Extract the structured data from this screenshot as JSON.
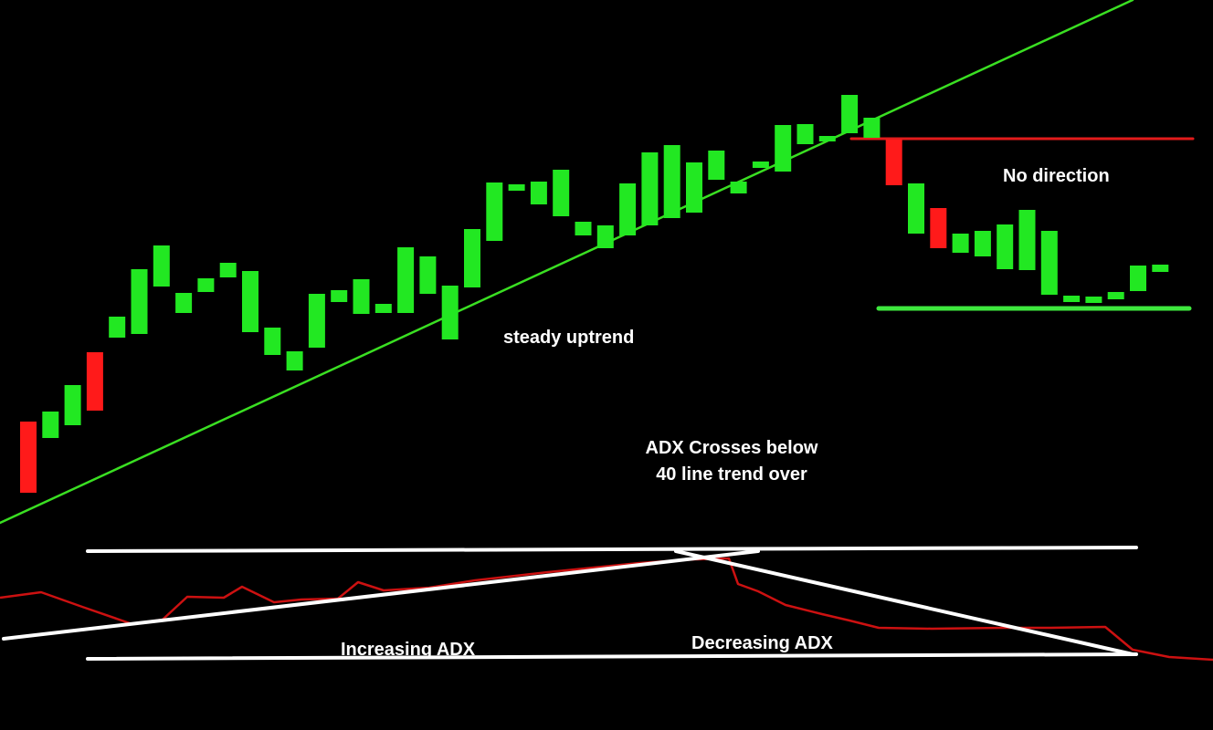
{
  "colors": {
    "background": "#000000",
    "bull_candle": "#22e822",
    "bear_candle": "#ff1a1a",
    "trendline": "#3adf22",
    "resistance_line": "#e21b1b",
    "support_line": "#3ee83e",
    "adx_line": "#cc1111",
    "annotation_lines": "#ffffff",
    "text": "#ffffff"
  },
  "annotations": {
    "steady_uptrend": "steady uptrend",
    "no_direction": "No direction",
    "adx_cross_line1": "ADX Crosses below",
    "adx_cross_line2": "40 line trend over",
    "increasing_adx": "Increasing ADX",
    "decreasing_adx": "Decreasing ADX"
  },
  "chart_data": [
    {
      "type": "candlestick",
      "series": [
        {
          "candles": [
            {
              "o": 462,
              "c": 540,
              "dir": "down"
            },
            {
              "o": 480,
              "c": 451,
              "dir": "up"
            },
            {
              "o": 466,
              "c": 422,
              "dir": "up"
            },
            {
              "o": 386,
              "c": 450,
              "dir": "down"
            },
            {
              "o": 370,
              "c": 347,
              "dir": "up"
            },
            {
              "o": 366,
              "c": 295,
              "dir": "up"
            },
            {
              "o": 314,
              "c": 269,
              "dir": "up"
            },
            {
              "o": 343,
              "c": 321,
              "dir": "up"
            },
            {
              "o": 320,
              "c": 305,
              "dir": "up"
            },
            {
              "o": 304,
              "c": 288,
              "dir": "up"
            },
            {
              "o": 364,
              "c": 297,
              "dir": "up"
            },
            {
              "o": 389,
              "c": 359,
              "dir": "up"
            },
            {
              "o": 406,
              "c": 385,
              "dir": "up"
            },
            {
              "o": 381,
              "c": 322,
              "dir": "up"
            },
            {
              "o": 331,
              "c": 318,
              "dir": "up"
            },
            {
              "o": 344,
              "c": 306,
              "dir": "up"
            },
            {
              "o": 343,
              "c": 333,
              "dir": "up"
            },
            {
              "o": 343,
              "c": 271,
              "dir": "up"
            },
            {
              "o": 322,
              "c": 281,
              "dir": "up"
            },
            {
              "o": 372,
              "c": 313,
              "dir": "up"
            },
            {
              "o": 315,
              "c": 251,
              "dir": "up"
            },
            {
              "o": 264,
              "c": 200,
              "dir": "up"
            },
            {
              "o": 209,
              "c": 202,
              "dir": "up"
            },
            {
              "o": 224,
              "c": 199,
              "dir": "up"
            },
            {
              "o": 237,
              "c": 186,
              "dir": "up"
            },
            {
              "o": 258,
              "c": 243,
              "dir": "up"
            },
            {
              "o": 272,
              "c": 247,
              "dir": "up"
            },
            {
              "o": 258,
              "c": 201,
              "dir": "up"
            },
            {
              "o": 247,
              "c": 167,
              "dir": "up"
            },
            {
              "o": 239,
              "c": 159,
              "dir": "up"
            },
            {
              "o": 233,
              "c": 178,
              "dir": "up"
            },
            {
              "o": 197,
              "c": 165,
              "dir": "up"
            },
            {
              "o": 212,
              "c": 199,
              "dir": "up"
            },
            {
              "o": 184,
              "c": 177,
              "dir": "up"
            },
            {
              "o": 188,
              "c": 137,
              "dir": "up"
            },
            {
              "o": 158,
              "c": 136,
              "dir": "up"
            },
            {
              "o": 155,
              "c": 149,
              "dir": "up"
            },
            {
              "o": 146,
              "c": 104,
              "dir": "up"
            },
            {
              "o": 151,
              "c": 129,
              "dir": "up"
            },
            {
              "o": 153,
              "c": 203,
              "dir": "down"
            },
            {
              "o": 201,
              "c": 256,
              "dir": "up"
            },
            {
              "o": 228,
              "c": 272,
              "dir": "down"
            },
            {
              "o": 256,
              "c": 277,
              "dir": "up"
            },
            {
              "o": 253,
              "c": 281,
              "dir": "up"
            },
            {
              "o": 246,
              "c": 295,
              "dir": "up"
            },
            {
              "o": 230,
              "c": 296,
              "dir": "up"
            },
            {
              "o": 253,
              "c": 323,
              "dir": "up"
            },
            {
              "o": 324,
              "c": 331,
              "dir": "up"
            },
            {
              "o": 325,
              "c": 332,
              "dir": "up"
            },
            {
              "o": 320,
              "c": 328,
              "dir": "up"
            },
            {
              "o": 291,
              "c": 319,
              "dir": "up"
            },
            {
              "o": 290,
              "c": 298,
              "dir": "up"
            }
          ]
        }
      ],
      "trendline": {
        "from": [
          0,
          573
        ],
        "to": [
          1240,
          0
        ]
      },
      "resistance_line": {
        "from": [
          932,
          152
        ],
        "to": [
          1306,
          152
        ]
      },
      "support_line": {
        "from": [
          962,
          338
        ],
        "to": [
          1302,
          338
        ]
      }
    },
    {
      "type": "line",
      "series": [
        {
          "values": [
            [
              0,
              655
            ],
            [
              45,
              649
            ],
            [
              90,
              665
            ],
            [
              145,
              684
            ],
            [
              178,
              679
            ],
            [
              205,
              654
            ],
            [
              245,
              655
            ],
            [
              265,
              643
            ],
            [
              300,
              660
            ],
            [
              330,
              657
            ],
            [
              370,
              656
            ],
            [
              392,
              638
            ],
            [
              420,
              647
            ],
            [
              470,
              644
            ],
            [
              520,
              636
            ],
            [
              600,
              627
            ],
            [
              700,
              617
            ],
            [
              760,
              613
            ],
            [
              798,
              612
            ],
            [
              808,
              640
            ],
            [
              830,
              648
            ],
            [
              860,
              663
            ],
            [
              900,
              673
            ],
            [
              930,
              680
            ],
            [
              962,
              688
            ],
            [
              1020,
              689
            ],
            [
              1100,
              688
            ],
            [
              1150,
              688
            ],
            [
              1210,
              687
            ],
            [
              1240,
              712
            ],
            [
              1280,
              720
            ],
            [
              1328,
              723
            ]
          ]
        }
      ],
      "reference_lines": [
        {
          "from": [
            96,
            604
          ],
          "to": [
            1244,
            600
          ]
        },
        {
          "from": [
            96,
            722
          ],
          "to": [
            1244,
            717
          ]
        },
        {
          "from": [
            4,
            700
          ],
          "to": [
            830,
            604
          ]
        },
        {
          "from": [
            740,
            604
          ],
          "to": [
            1240,
            717
          ]
        }
      ]
    }
  ]
}
